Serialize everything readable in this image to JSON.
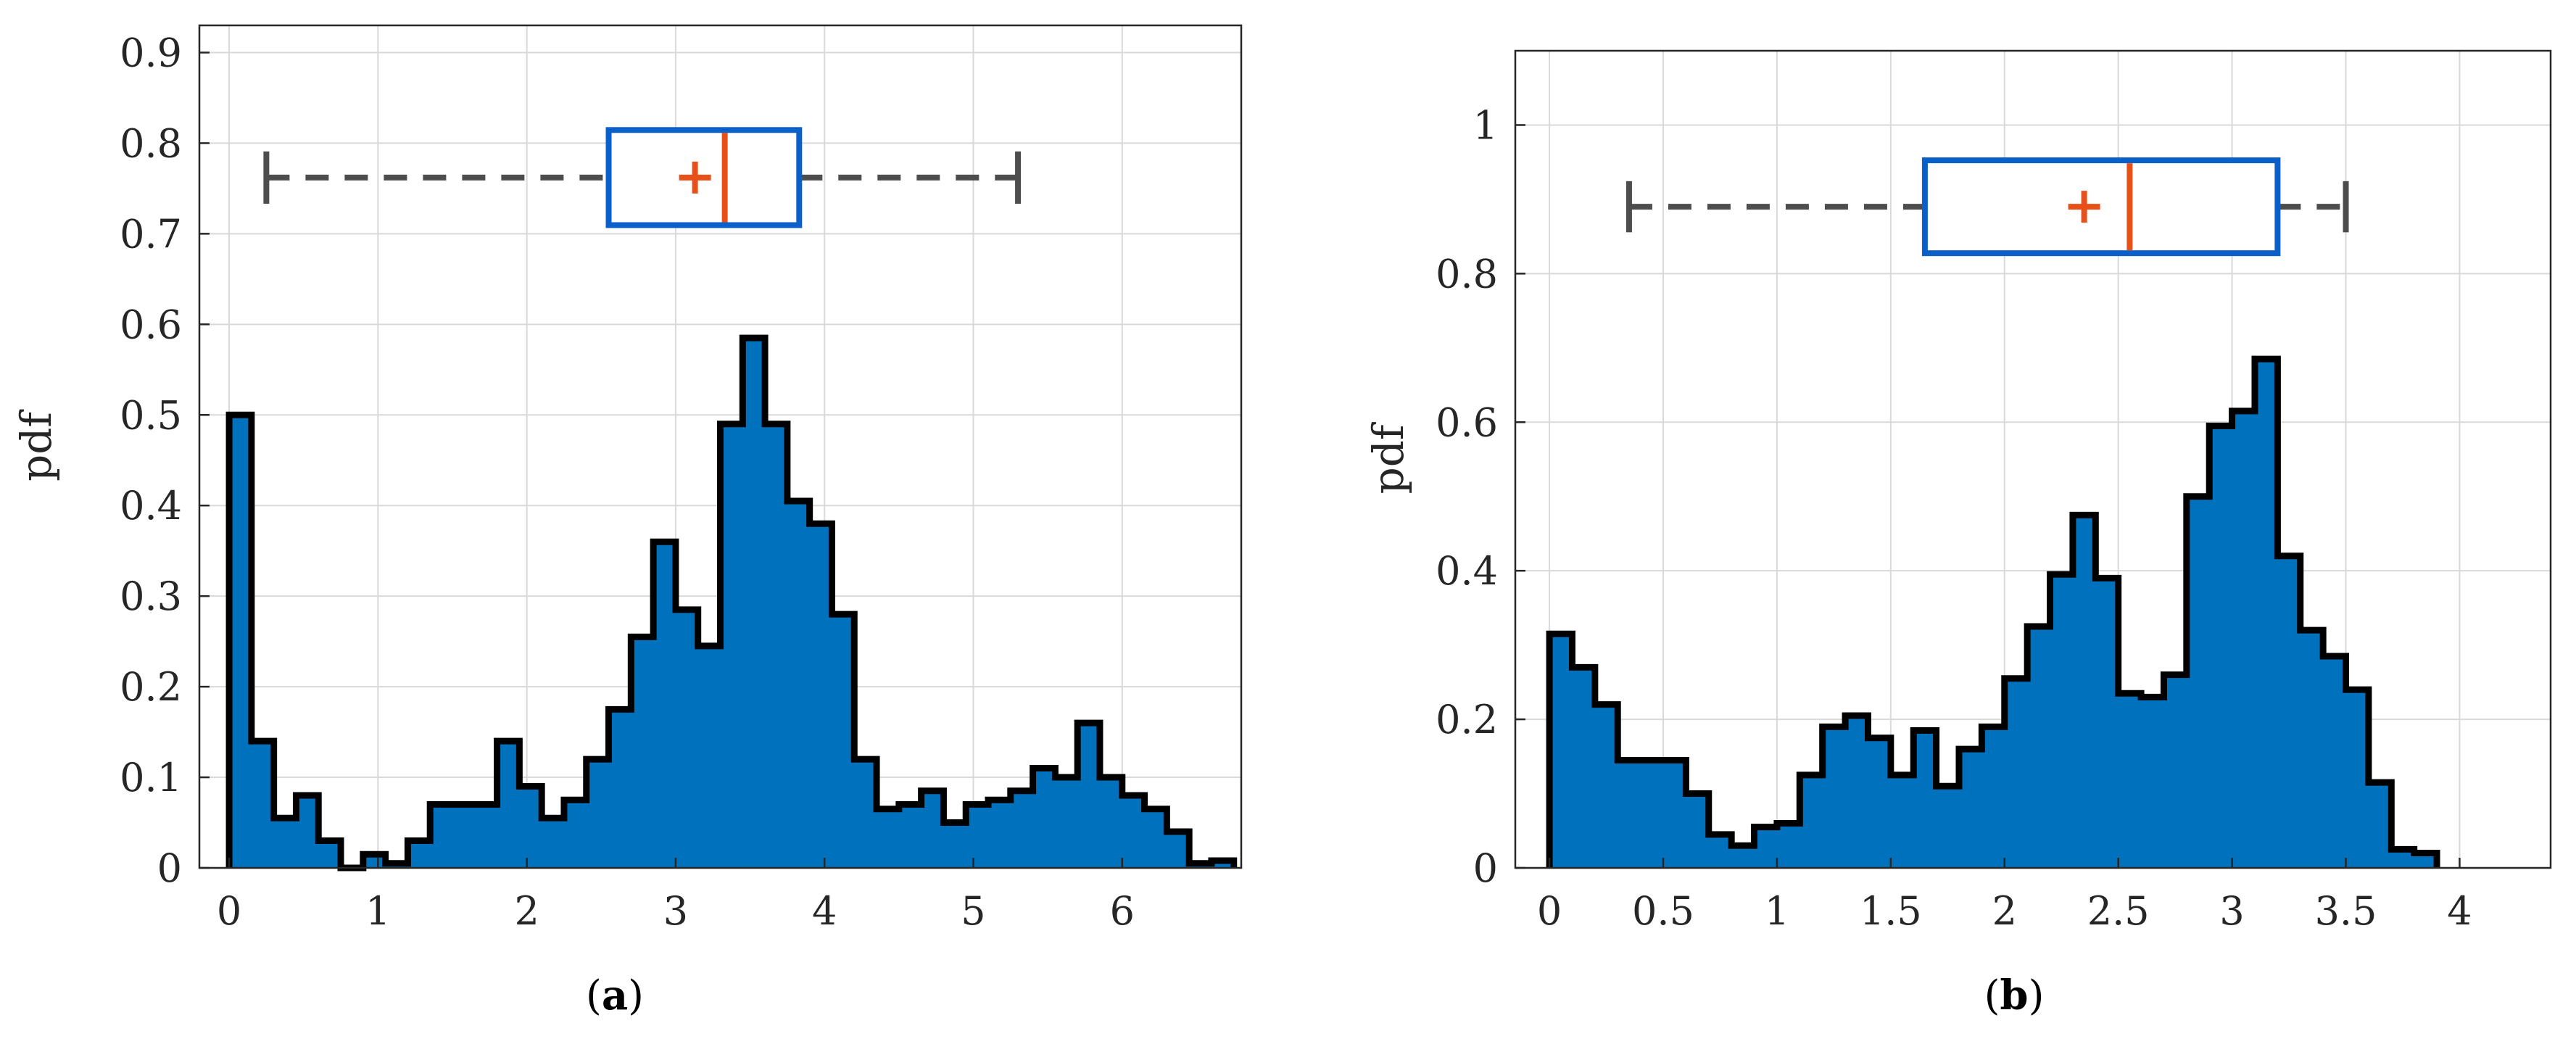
{
  "colors": {
    "bar": "#0072BD",
    "edge": "#000000",
    "box": "#0A5FC8",
    "median": "#E8501A",
    "whisker": "#4D4D4D",
    "grid": "#D9D9D9"
  },
  "chart_data": [
    {
      "type": "histogram",
      "caption": {
        "open": "(",
        "letter": "a",
        "close": ")"
      },
      "ylabel": "pdf",
      "xlim": [
        -0.2,
        6.8
      ],
      "ylim": [
        0,
        0.93
      ],
      "xticks": [
        0,
        1,
        2,
        3,
        4,
        5,
        6
      ],
      "xtick_labels": [
        "0",
        "1",
        "2",
        "3",
        "4",
        "5",
        "6"
      ],
      "yticks": [
        0,
        0.1,
        0.2,
        0.3,
        0.4,
        0.5,
        0.6,
        0.7,
        0.8,
        0.9
      ],
      "ytick_labels": [
        "0",
        "0.1",
        "0.2",
        "0.3",
        "0.4",
        "0.5",
        "0.6",
        "0.7",
        "0.8",
        "0.9"
      ],
      "grid": true,
      "bin_start": 0,
      "bin_width": 0.15,
      "values": [
        0.5,
        0.14,
        0.055,
        0.08,
        0.03,
        0.0,
        0.015,
        0.005,
        0.03,
        0.07,
        0.07,
        0.07,
        0.14,
        0.09,
        0.055,
        0.075,
        0.12,
        0.175,
        0.255,
        0.36,
        0.285,
        0.245,
        0.49,
        0.585,
        0.49,
        0.405,
        0.38,
        0.28,
        0.12,
        0.065,
        0.07,
        0.085,
        0.05,
        0.07,
        0.075,
        0.085,
        0.11,
        0.1,
        0.16,
        0.1,
        0.08,
        0.065,
        0.04,
        0.005,
        0.008
      ],
      "boxplot": {
        "y": 0.762,
        "whisker_low": 0.25,
        "q1": 2.55,
        "median": 3.33,
        "q3": 3.83,
        "whisker_high": 5.3,
        "mean": 3.13,
        "box_height": 0.105
      }
    },
    {
      "type": "histogram",
      "caption": {
        "open": "(",
        "letter": "b",
        "close": ")"
      },
      "ylabel": "pdf",
      "xlim": [
        -0.15,
        4.4
      ],
      "ylim": [
        0,
        1.1
      ],
      "xticks": [
        0,
        0.5,
        1,
        1.5,
        2,
        2.5,
        3,
        3.5,
        4
      ],
      "xtick_labels": [
        "0",
        "0.5",
        "1",
        "1.5",
        "2",
        "2.5",
        "3",
        "3.5",
        "4"
      ],
      "yticks": [
        0,
        0.2,
        0.4,
        0.6,
        0.8,
        1
      ],
      "ytick_labels": [
        "0",
        "0.2",
        "0.4",
        "0.6",
        "0.8",
        "1"
      ],
      "grid": true,
      "bin_start": 0,
      "bin_width": 0.1,
      "values": [
        0.315,
        0.27,
        0.22,
        0.145,
        0.145,
        0.145,
        0.1,
        0.045,
        0.03,
        0.055,
        0.06,
        0.125,
        0.19,
        0.205,
        0.175,
        0.125,
        0.185,
        0.11,
        0.16,
        0.19,
        0.255,
        0.325,
        0.395,
        0.475,
        0.39,
        0.235,
        0.23,
        0.26,
        0.5,
        0.595,
        0.615,
        0.685,
        0.42,
        0.32,
        0.285,
        0.24,
        0.115,
        0.025,
        0.02
      ],
      "boxplot": {
        "y": 0.89,
        "whisker_low": 0.35,
        "q1": 1.65,
        "median": 2.55,
        "q3": 3.2,
        "whisker_high": 3.5,
        "mean": 2.35,
        "box_height": 0.125
      }
    }
  ]
}
